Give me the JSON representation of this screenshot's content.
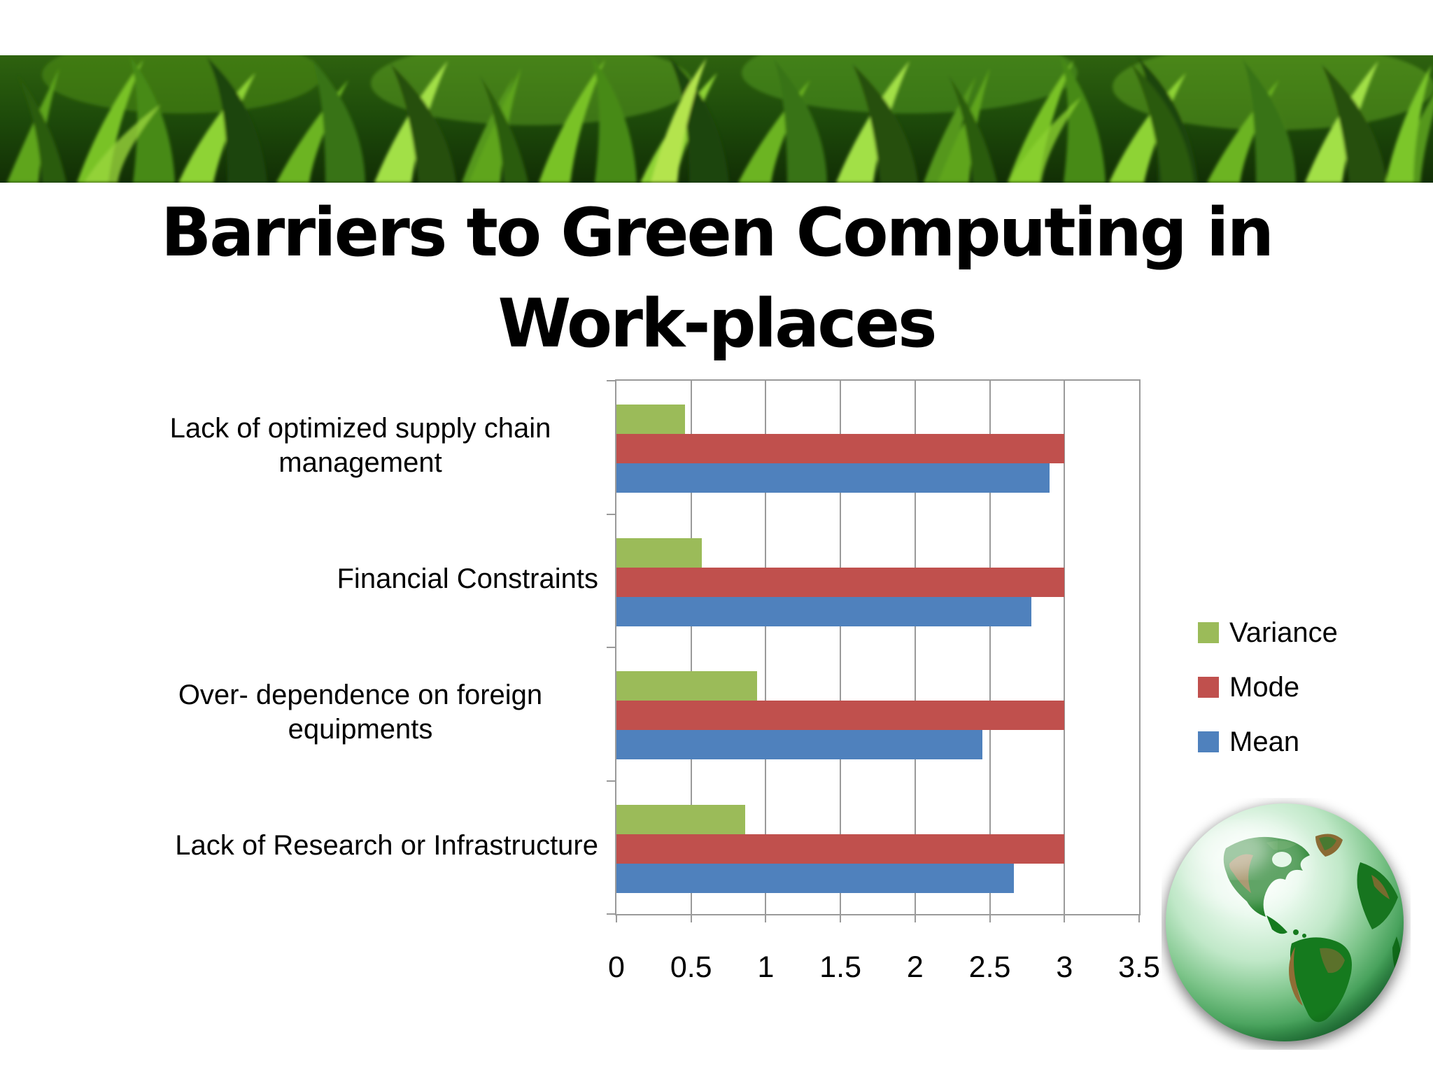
{
  "slide": {
    "title_line1": "Barriers to Green Computing in",
    "title_line2": "Work-places",
    "background": "#ffffff"
  },
  "images": {
    "banner": "grass-photo-strip",
    "globe": "green-glossy-earth-globe-americas"
  },
  "chart_data": {
    "type": "bar",
    "orientation": "horizontal",
    "title": "",
    "categories": [
      "Lack of optimized supply chain management",
      "Financial Constraints",
      "Over- dependence on foreign equipments",
      "Lack of Research or Infrastructure"
    ],
    "series": [
      {
        "name": "Variance",
        "color": "#9BBB59",
        "values": [
          0.46,
          0.57,
          0.94,
          0.86
        ]
      },
      {
        "name": "Mode",
        "color": "#C0504D",
        "values": [
          3,
          3,
          3,
          3
        ]
      },
      {
        "name": "Mean",
        "color": "#4F81BD",
        "values": [
          2.9,
          2.78,
          2.45,
          2.66
        ]
      }
    ],
    "xlim": [
      0,
      3.5
    ],
    "xticks": [
      "0",
      "0.5",
      "1",
      "1.5",
      "2",
      "2.5",
      "3",
      "3.5"
    ],
    "grid": true,
    "legend_position": "right",
    "axis_color": "#9a9a9a",
    "text_color": "#000000"
  }
}
